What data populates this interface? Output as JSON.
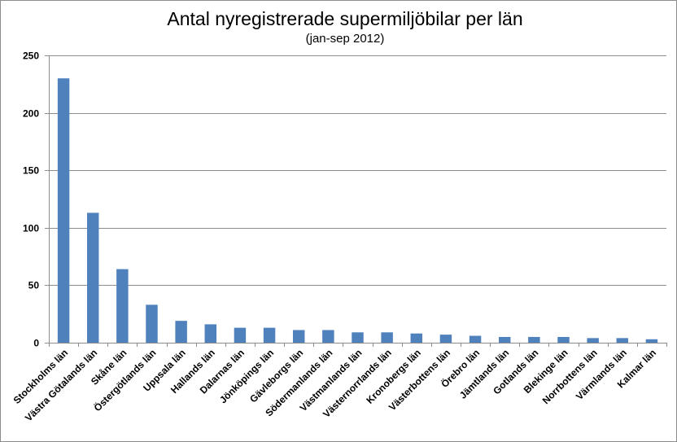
{
  "chart_data": {
    "type": "bar",
    "title": "Antal nyregistrerade supermiljöbilar per län",
    "subtitle": "(jan-sep 2012)",
    "categories": [
      "Stockholms län",
      "Västra Götalands län",
      "Skåne län",
      "Östergötlands län",
      "Uppsala län",
      "Hallands län",
      "Dalarnas län",
      "Jönköpings län",
      "Gävleborgs län",
      "Södermanlands län",
      "Västmanlands län",
      "Västernorrlands län",
      "Kronobergs län",
      "Västerbottens län",
      "Örebro län",
      "Jämtlands län",
      "Gotlands län",
      "Blekinge län",
      "Norrbottens län",
      "Värmlands län",
      "Kalmar län"
    ],
    "values": [
      230,
      113,
      64,
      33,
      19,
      16,
      13,
      13,
      11,
      11,
      9,
      9,
      8,
      7,
      6,
      5,
      5,
      5,
      4,
      4,
      3
    ],
    "ylim": [
      0,
      250
    ],
    "yticks": [
      0,
      50,
      100,
      150,
      200,
      250
    ],
    "xlabel": "",
    "ylabel": "",
    "grid": true,
    "legend": "none",
    "bar_color": "#4f81bd"
  }
}
